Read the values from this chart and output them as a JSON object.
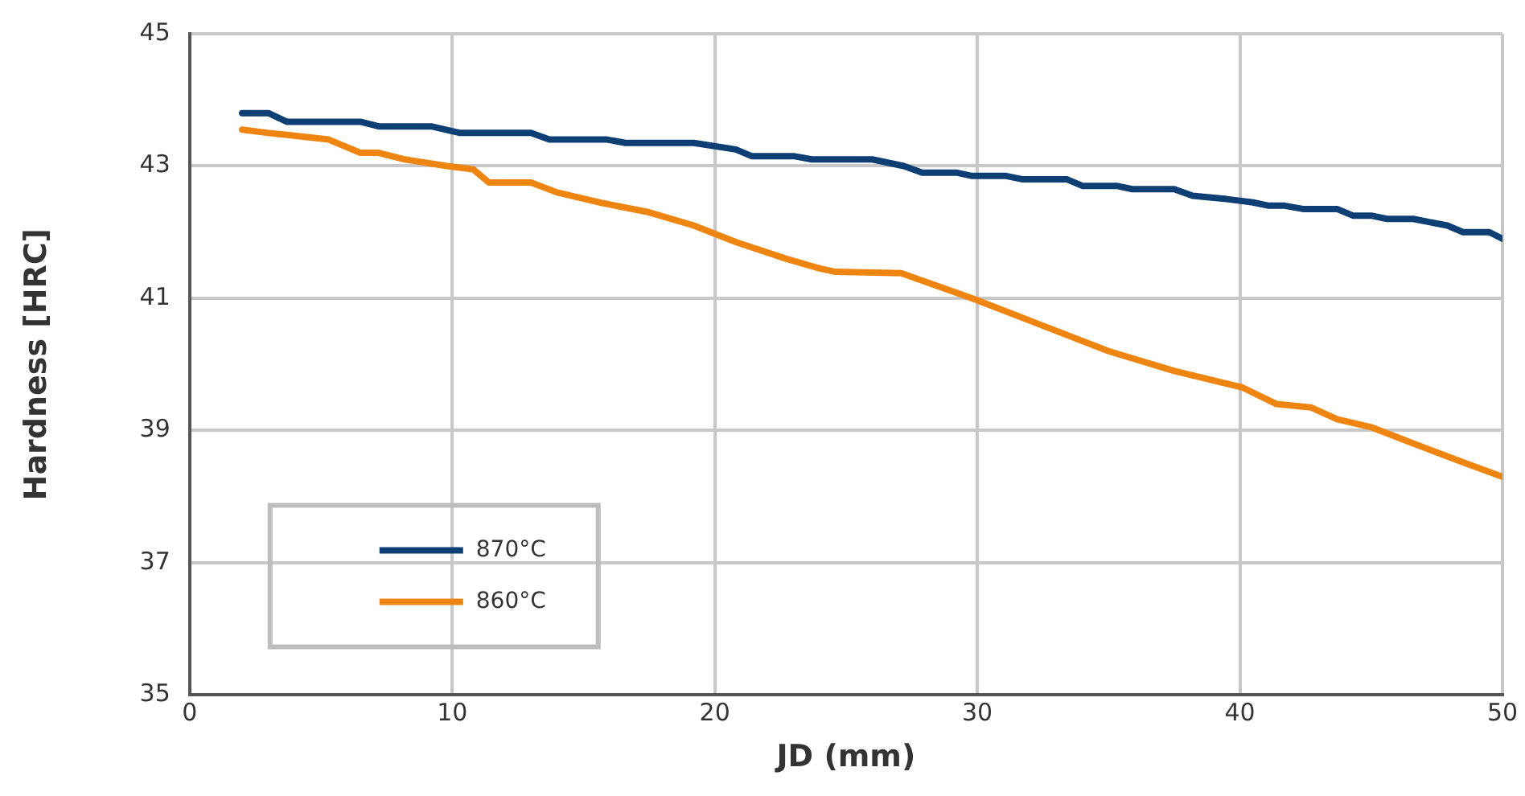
{
  "chart_data": {
    "type": "line",
    "xlabel": "JD (mm)",
    "ylabel": "Hardness [HRC]",
    "xlim": [
      0,
      50
    ],
    "xticks": [
      0,
      10,
      20,
      30,
      40,
      50
    ],
    "ylim": [
      35,
      45
    ],
    "yticks": [
      35,
      37,
      39,
      41,
      43,
      45
    ],
    "grid": true,
    "legend": "bottom left",
    "marker": "none",
    "line_style": "solid",
    "series": [
      {
        "name": "870°C",
        "color": "#0d3f74",
        "x": [
          2,
          3,
          3.7,
          6.5,
          7.2,
          9.2,
          10.3,
          13,
          13.7,
          15.9,
          16.6,
          19.2,
          20.8,
          21.4,
          23,
          23.7,
          26,
          27.2,
          27.9,
          29.2,
          29.8,
          31.1,
          31.7,
          33.4,
          34,
          35.3,
          35.9,
          37.5,
          38.2,
          39.5,
          40.5,
          41.1,
          41.7,
          42.4,
          43.7,
          44.3,
          45,
          45.6,
          46.6,
          47.9,
          48.5,
          49.5,
          50
        ],
        "values": [
          43.8,
          43.8,
          43.67,
          43.67,
          43.6,
          43.6,
          43.5,
          43.5,
          43.4,
          43.4,
          43.35,
          43.35,
          43.25,
          43.15,
          43.15,
          43.1,
          43.1,
          43.0,
          42.9,
          42.9,
          42.85,
          42.85,
          42.8,
          42.8,
          42.7,
          42.7,
          42.65,
          42.65,
          42.55,
          42.5,
          42.45,
          42.4,
          42.4,
          42.35,
          42.35,
          42.25,
          42.25,
          42.2,
          42.2,
          42.1,
          42.0,
          42.0,
          41.9
        ]
      },
      {
        "name": "860°C",
        "color": "#ef8511",
        "x": [
          2,
          3,
          3.7,
          5.3,
          6.5,
          7.2,
          8.2,
          9.8,
          10.8,
          11.4,
          13,
          14,
          15.6,
          17.5,
          19.2,
          20.8,
          22.7,
          24,
          24.6,
          27.1,
          29.8,
          32.4,
          35,
          37.5,
          40.1,
          41.4,
          42.7,
          43.7,
          45,
          46.3,
          48.5,
          50
        ],
        "values": [
          43.55,
          43.5,
          43.47,
          43.4,
          43.2,
          43.2,
          43.1,
          43.0,
          42.95,
          42.75,
          42.75,
          42.6,
          42.45,
          42.3,
          42.1,
          41.85,
          41.6,
          41.45,
          41.4,
          41.38,
          41.0,
          40.6,
          40.2,
          39.9,
          39.65,
          39.4,
          39.35,
          39.17,
          39.05,
          38.85,
          38.52,
          38.3
        ]
      }
    ]
  }
}
